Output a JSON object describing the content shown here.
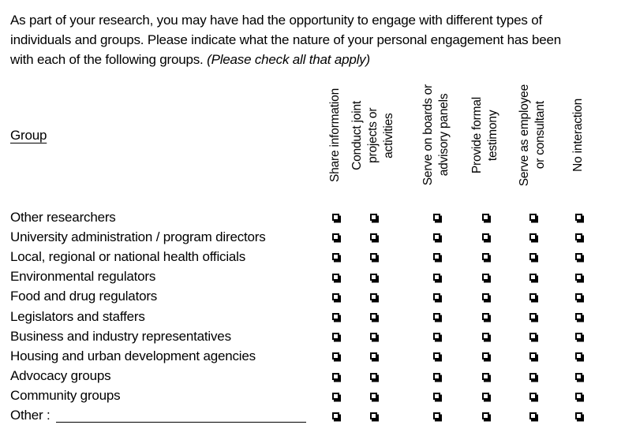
{
  "intro": {
    "text": "As part of your research, you may have had the opportunity to engage with different types of individuals and groups. Please indicate what the nature of your personal engagement has been with each of the following groups. ",
    "note": "(Please check all that apply)"
  },
  "matrix": {
    "group_header": "Group",
    "columns": [
      {
        "label": "Share information"
      },
      {
        "label": "Conduct joint\nprojects or\nactivities"
      },
      {
        "label": "Serve on boards or\nadvisory panels"
      },
      {
        "label": "Provide formal\ntestimony"
      },
      {
        "label": "Serve as employee\nor consultant"
      },
      {
        "label": "No interaction"
      }
    ],
    "rows": [
      {
        "label": "Other researchers",
        "checks": [
          false,
          false,
          false,
          false,
          false,
          false
        ]
      },
      {
        "label": "University administration / program directors",
        "checks": [
          false,
          false,
          false,
          false,
          false,
          false
        ]
      },
      {
        "label": "Local, regional or national health officials",
        "checks": [
          false,
          false,
          false,
          false,
          false,
          false
        ]
      },
      {
        "label": "Environmental regulators",
        "checks": [
          false,
          false,
          false,
          false,
          false,
          false
        ]
      },
      {
        "label": "Food and drug regulators",
        "checks": [
          false,
          false,
          false,
          false,
          false,
          false
        ]
      },
      {
        "label": "Legislators and staffers",
        "checks": [
          false,
          false,
          false,
          false,
          false,
          false
        ]
      },
      {
        "label": "Business and industry representatives",
        "checks": [
          false,
          false,
          false,
          false,
          false,
          false
        ]
      },
      {
        "label": "Housing and urban development agencies",
        "checks": [
          false,
          false,
          false,
          false,
          false,
          false
        ]
      },
      {
        "label": "Advocacy groups",
        "checks": [
          false,
          false,
          false,
          false,
          false,
          false
        ]
      },
      {
        "label": "Community groups",
        "checks": [
          false,
          false,
          false,
          false,
          false,
          false
        ]
      },
      {
        "label": "Other :",
        "has_blank_write_in": true,
        "blank_value": "",
        "checks": [
          false,
          false,
          false,
          false,
          false,
          false
        ]
      }
    ]
  }
}
